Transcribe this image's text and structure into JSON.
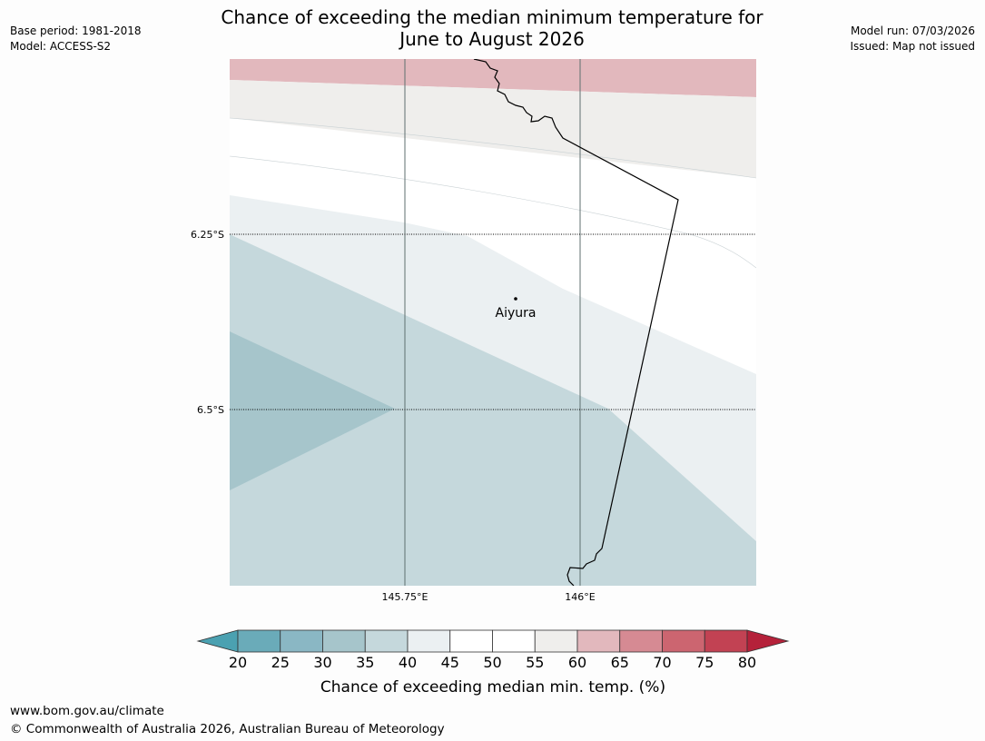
{
  "meta": {
    "base_period": "Base period: 1981-2018",
    "model": "Model: ACCESS-S2",
    "model_run": "Model run: 07/03/2026",
    "issued": "Issued: Map not issued"
  },
  "title": {
    "line1": "Chance of exceeding the median minimum temperature for",
    "line2": "June to August 2026"
  },
  "map": {
    "lat_labels": [
      "6.25°S",
      "6.5°S"
    ],
    "lon_labels": [
      "145.75°E",
      "146°E"
    ],
    "place": {
      "name": "Aiyura"
    },
    "regions": [
      {
        "name": "band-60-65",
        "bin": "60-65"
      },
      {
        "name": "band-55-60",
        "bin": "55-60"
      },
      {
        "name": "band-50-55",
        "bin": "50-55"
      },
      {
        "name": "band-45-50",
        "bin": "45-50"
      },
      {
        "name": "band-40-45",
        "bin": "40-45"
      },
      {
        "name": "band-35-40",
        "bin": "35-40"
      },
      {
        "name": "band-30-35",
        "bin": "30-35"
      }
    ]
  },
  "colorbar": {
    "ticks": [
      "20",
      "25",
      "30",
      "35",
      "40",
      "45",
      "50",
      "55",
      "60",
      "65",
      "70",
      "75",
      "80"
    ],
    "colors": [
      "#6aabb9",
      "#8ab7c4",
      "#a6c5cb",
      "#c5d8dc",
      "#ebf0f2",
      "#ffffff",
      "#ffffff",
      "#efeeec",
      "#e2b8bd",
      "#d68a93",
      "#cc6570",
      "#c24253"
    ],
    "low_extend_color": "#4ba1b1",
    "high_extend_color": "#b5213a",
    "label": "Chance of exceeding median min. temp. (%)"
  },
  "footer": {
    "url": "www.bom.gov.au/climate",
    "copyright": "© Commonwealth of Australia 2026, Australian Bureau of Meteorology"
  }
}
